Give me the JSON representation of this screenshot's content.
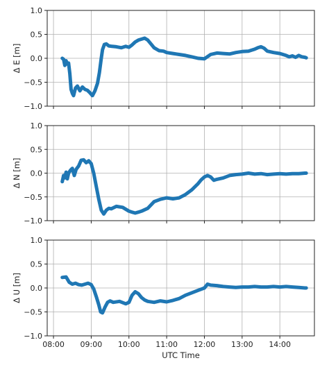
{
  "chart_data": [
    {
      "type": "line",
      "ylabel": "Δ E [m]",
      "xlabel": "",
      "ylim": [
        -1.0,
        1.0
      ],
      "yticks": [
        -1.0,
        -0.5,
        0.0,
        0.5,
        1.0
      ],
      "ytick_labels": [
        "−1.0",
        "−0.5",
        "0.0",
        "0.5",
        "1.0"
      ],
      "xlim": [
        "07:50",
        "14:55"
      ],
      "xticks": [
        "08:00",
        "09:00",
        "10:00",
        "11:00",
        "12:00",
        "13:00",
        "14:00"
      ],
      "xtick_labels": [],
      "grid": true,
      "series_color": "#1f77b4",
      "x": [
        "08:14",
        "08:16",
        "08:18",
        "08:20",
        "08:22",
        "08:24",
        "08:26",
        "08:28",
        "08:30",
        "08:32",
        "08:35",
        "08:38",
        "08:42",
        "08:46",
        "08:50",
        "08:54",
        "08:58",
        "09:02",
        "09:06",
        "09:10",
        "09:13",
        "09:16",
        "09:18",
        "09:21",
        "09:24",
        "09:28",
        "09:33",
        "09:40",
        "09:48",
        "09:55",
        "10:00",
        "10:05",
        "10:10",
        "10:15",
        "10:20",
        "10:25",
        "10:30",
        "10:35",
        "10:40",
        "10:48",
        "10:55",
        "11:00",
        "11:10",
        "11:20",
        "11:30",
        "11:40",
        "11:50",
        "12:00",
        "12:10",
        "12:20",
        "12:30",
        "12:40",
        "12:50",
        "13:00",
        "13:10",
        "13:20",
        "13:25",
        "13:30",
        "13:35",
        "13:40",
        "13:50",
        "14:00",
        "14:10",
        "14:15",
        "14:20",
        "14:25",
        "14:30",
        "14:35",
        "14:40",
        "14:42"
      ],
      "values": [
        0.0,
        -0.02,
        -0.15,
        -0.05,
        -0.12,
        -0.1,
        -0.32,
        -0.65,
        -0.73,
        -0.78,
        -0.62,
        -0.58,
        -0.68,
        -0.6,
        -0.65,
        -0.67,
        -0.72,
        -0.78,
        -0.68,
        -0.52,
        -0.3,
        0.0,
        0.18,
        0.29,
        0.3,
        0.26,
        0.25,
        0.24,
        0.22,
        0.25,
        0.23,
        0.28,
        0.34,
        0.38,
        0.4,
        0.42,
        0.38,
        0.3,
        0.22,
        0.16,
        0.15,
        0.12,
        0.1,
        0.08,
        0.06,
        0.03,
        0.0,
        -0.01,
        0.08,
        0.11,
        0.1,
        0.09,
        0.12,
        0.14,
        0.15,
        0.19,
        0.22,
        0.24,
        0.21,
        0.15,
        0.12,
        0.1,
        0.06,
        0.03,
        0.05,
        0.02,
        0.06,
        0.03,
        0.02,
        0.01
      ]
    },
    {
      "type": "line",
      "ylabel": "Δ N [m]",
      "xlabel": "",
      "ylim": [
        -1.0,
        1.0
      ],
      "yticks": [
        -1.0,
        -0.5,
        0.0,
        0.5,
        1.0
      ],
      "ytick_labels": [
        "−1.0",
        "−0.5",
        "0.0",
        "0.5",
        "1.0"
      ],
      "xlim": [
        "07:50",
        "14:55"
      ],
      "xticks": [
        "08:00",
        "09:00",
        "10:00",
        "11:00",
        "12:00",
        "13:00",
        "14:00"
      ],
      "xtick_labels": [],
      "grid": true,
      "series_color": "#1f77b4",
      "x": [
        "08:14",
        "08:16",
        "08:18",
        "08:20",
        "08:22",
        "08:24",
        "08:27",
        "08:30",
        "08:33",
        "08:36",
        "08:40",
        "08:44",
        "08:48",
        "08:52",
        "08:56",
        "09:00",
        "09:04",
        "09:08",
        "09:12",
        "09:16",
        "09:20",
        "09:24",
        "09:28",
        "09:32",
        "09:40",
        "09:50",
        "10:00",
        "10:05",
        "10:10",
        "10:15",
        "10:20",
        "10:30",
        "10:40",
        "10:50",
        "11:00",
        "11:10",
        "11:20",
        "11:30",
        "11:40",
        "11:50",
        "11:55",
        "12:00",
        "12:05",
        "12:10",
        "12:15",
        "12:20",
        "12:30",
        "12:40",
        "12:50",
        "13:00",
        "13:10",
        "13:20",
        "13:30",
        "13:40",
        "13:50",
        "14:00",
        "14:10",
        "14:20",
        "14:30",
        "14:40",
        "14:42"
      ],
      "values": [
        -0.18,
        -0.05,
        -0.1,
        0.02,
        -0.12,
        0.0,
        0.06,
        0.1,
        -0.05,
        0.08,
        0.15,
        0.27,
        0.28,
        0.22,
        0.26,
        0.2,
        0.0,
        -0.28,
        -0.55,
        -0.78,
        -0.86,
        -0.78,
        -0.74,
        -0.75,
        -0.7,
        -0.72,
        -0.8,
        -0.82,
        -0.84,
        -0.82,
        -0.8,
        -0.74,
        -0.6,
        -0.55,
        -0.52,
        -0.54,
        -0.52,
        -0.45,
        -0.35,
        -0.22,
        -0.14,
        -0.08,
        -0.05,
        -0.08,
        -0.15,
        -0.13,
        -0.1,
        -0.05,
        -0.03,
        -0.02,
        0.0,
        -0.02,
        -0.01,
        -0.03,
        -0.02,
        -0.01,
        -0.02,
        -0.01,
        -0.01,
        0.0,
        0.0
      ]
    },
    {
      "type": "line",
      "ylabel": "Δ U [m]",
      "xlabel": "UTC Time",
      "ylim": [
        -1.0,
        1.0
      ],
      "yticks": [
        -1.0,
        -0.5,
        0.0,
        0.5,
        1.0
      ],
      "ytick_labels": [
        "−1.0",
        "−0.5",
        "0.0",
        "0.5",
        "1.0"
      ],
      "xlim": [
        "07:50",
        "14:55"
      ],
      "xticks": [
        "08:00",
        "09:00",
        "10:00",
        "11:00",
        "12:00",
        "13:00",
        "14:00"
      ],
      "xtick_labels": [
        "08:00",
        "09:00",
        "10:00",
        "11:00",
        "12:00",
        "13:00",
        "14:00"
      ],
      "grid": true,
      "series_color": "#1f77b4",
      "x": [
        "08:14",
        "08:20",
        "08:25",
        "08:30",
        "08:35",
        "08:40",
        "08:45",
        "08:50",
        "08:55",
        "09:00",
        "09:04",
        "09:08",
        "09:12",
        "09:15",
        "09:18",
        "09:22",
        "09:26",
        "09:30",
        "09:35",
        "09:45",
        "09:55",
        "10:00",
        "10:05",
        "10:10",
        "10:15",
        "10:20",
        "10:25",
        "10:30",
        "10:40",
        "10:50",
        "11:00",
        "11:10",
        "11:20",
        "11:30",
        "11:40",
        "11:50",
        "12:00",
        "12:05",
        "12:10",
        "12:20",
        "12:30",
        "12:40",
        "12:50",
        "13:00",
        "13:10",
        "13:20",
        "13:30",
        "13:40",
        "13:50",
        "14:00",
        "14:10",
        "14:20",
        "14:30",
        "14:40",
        "14:42"
      ],
      "values": [
        0.22,
        0.23,
        0.12,
        0.08,
        0.1,
        0.07,
        0.06,
        0.08,
        0.1,
        0.07,
        -0.02,
        -0.18,
        -0.35,
        -0.5,
        -0.52,
        -0.4,
        -0.3,
        -0.27,
        -0.3,
        -0.28,
        -0.33,
        -0.3,
        -0.15,
        -0.08,
        -0.12,
        -0.2,
        -0.25,
        -0.28,
        -0.3,
        -0.27,
        -0.29,
        -0.26,
        -0.22,
        -0.15,
        -0.1,
        -0.05,
        0.0,
        0.08,
        0.06,
        0.05,
        0.03,
        0.02,
        0.01,
        0.02,
        0.02,
        0.03,
        0.02,
        0.02,
        0.03,
        0.02,
        0.03,
        0.02,
        0.01,
        0.0,
        0.0
      ]
    }
  ]
}
